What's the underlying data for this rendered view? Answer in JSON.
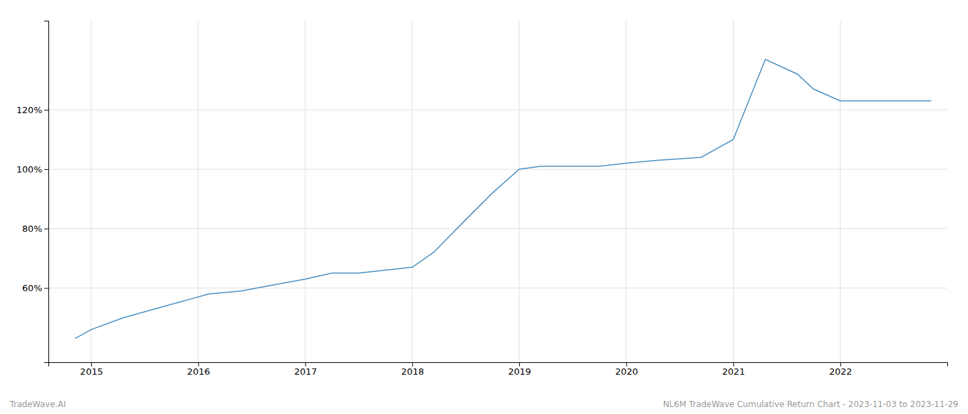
{
  "chart_data": {
    "type": "line",
    "x": [
      2014.85,
      2015.0,
      2015.3,
      2015.6,
      2015.9,
      2016.1,
      2016.4,
      2016.7,
      2017.0,
      2017.25,
      2017.5,
      2017.75,
      2018.0,
      2018.2,
      2018.5,
      2018.75,
      2019.0,
      2019.2,
      2019.5,
      2019.75,
      2020.0,
      2020.3,
      2020.7,
      2021.0,
      2021.3,
      2021.6,
      2021.75,
      2022.0,
      2022.5,
      2022.85
    ],
    "values": [
      43,
      46,
      50,
      53,
      56,
      58,
      59,
      61,
      63,
      65,
      65,
      66,
      67,
      72,
      83,
      92,
      100,
      101,
      101,
      101,
      102,
      103,
      104,
      110,
      137,
      132,
      127,
      123,
      123,
      123
    ],
    "color": "#4a90c4",
    "xlim": [
      2014.6,
      2023.0
    ],
    "ylim": [
      35,
      150
    ],
    "xticks": [
      2015,
      2016,
      2017,
      2018,
      2019,
      2020,
      2021,
      2022
    ],
    "yticks": [
      {
        "value": 60,
        "label": "60%"
      },
      {
        "value": 80,
        "label": "80%"
      },
      {
        "value": 100,
        "label": "100%"
      },
      {
        "value": 120,
        "label": "120%"
      }
    ],
    "grid": true,
    "annotations": [
      "TradeWave.AI",
      "NL6M TradeWave Cumulative Return Chart - 2023-11-03 to 2023-11-29"
    ]
  }
}
